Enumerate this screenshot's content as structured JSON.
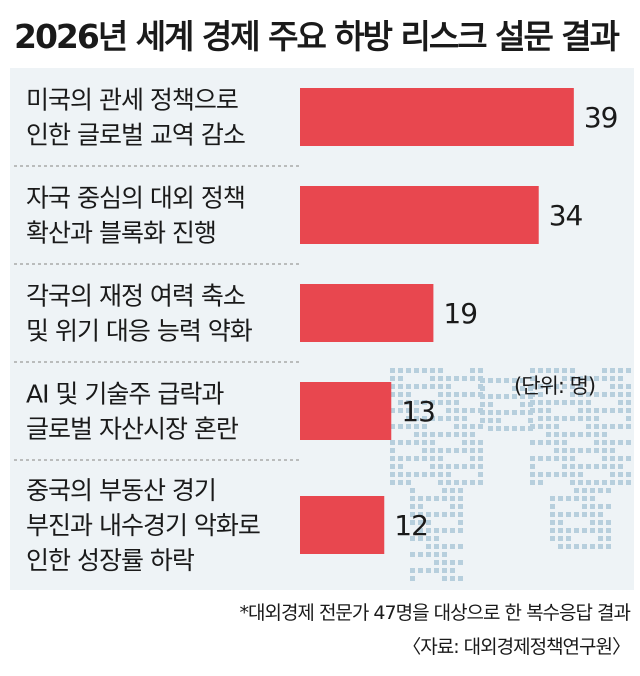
{
  "title": "2026년 세계 경제 주요 하방 리스크 설문 결과",
  "unit_note": "(단위: 명)",
  "footnote": "*대외경제 전문가 47명을 대상으로 한 복수응답 결과",
  "source": "〈자료: 대외경제정책연구원〉",
  "colors": {
    "bar": "#e8474f",
    "panel": "#eef3f6",
    "map_dots": "#b7cfdd",
    "divider": "#9a9a9a"
  },
  "chart_data": {
    "type": "bar",
    "orientation": "horizontal",
    "title": "2026년 세계 경제 주요 하방 리스크 설문 결과",
    "unit": "(단위: 명)",
    "categories": [
      [
        "미국의 관세 정책으로",
        "인한 글로벌 교역 감소"
      ],
      [
        "자국 중심의 대외 정책",
        "확산과 블록화 진행"
      ],
      [
        "각국의 재정 여력 축소",
        "및 위기 대응 능력 약화"
      ],
      [
        "AI 및 기술주 급락과",
        "글로벌 자산시장 혼란"
      ],
      [
        "중국의 부동산 경기",
        "부진과 내수경기 악화로",
        "인한 성장률 하락"
      ]
    ],
    "values": [
      39,
      34,
      19,
      13,
      12
    ],
    "xlim": [
      0,
      47
    ]
  }
}
